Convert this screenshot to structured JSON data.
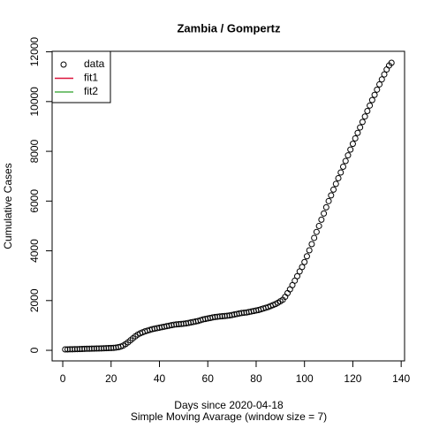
{
  "chart_data": {
    "type": "scatter",
    "title": "Zambia / Gompertz",
    "xlabel": "Days since 2020-04-18",
    "subtitle": "Simple Moving Avarage (window size = 7)",
    "ylabel": "Cumulative Cases",
    "x": [
      1,
      2,
      3,
      4,
      5,
      6,
      7,
      8,
      9,
      10,
      11,
      12,
      13,
      14,
      15,
      16,
      17,
      18,
      19,
      20,
      21,
      22,
      23,
      24,
      25,
      26,
      27,
      28,
      29,
      30,
      31,
      32,
      33,
      34,
      35,
      36,
      37,
      38,
      39,
      40,
      41,
      42,
      43,
      44,
      45,
      46,
      47,
      48,
      49,
      50,
      51,
      52,
      53,
      54,
      55,
      56,
      57,
      58,
      59,
      60,
      61,
      62,
      63,
      64,
      65,
      66,
      67,
      68,
      69,
      70,
      71,
      72,
      73,
      74,
      75,
      76,
      77,
      78,
      79,
      80,
      81,
      82,
      83,
      84,
      85,
      86,
      87,
      88,
      89,
      90,
      91,
      92,
      93,
      94,
      95,
      96,
      97,
      98,
      99,
      100,
      101,
      102,
      103,
      104,
      105,
      106,
      107,
      108,
      109,
      110,
      111,
      112,
      113,
      114,
      115,
      116,
      117,
      118,
      119,
      120,
      121,
      122,
      123,
      124,
      125,
      126,
      127,
      128,
      129,
      130,
      131,
      132,
      133,
      134,
      135,
      136
    ],
    "series": [
      {
        "name": "data",
        "color": "#000000",
        "values": [
          36,
          38,
          40,
          42,
          45,
          48,
          50,
          55,
          60,
          62,
          65,
          68,
          70,
          72,
          75,
          78,
          80,
          85,
          90,
          95,
          100,
          110,
          125,
          150,
          190,
          250,
          320,
          400,
          480,
          560,
          630,
          680,
          720,
          760,
          790,
          820,
          850,
          870,
          890,
          910,
          930,
          950,
          970,
          990,
          1010,
          1030,
          1040,
          1050,
          1060,
          1070,
          1080,
          1100,
          1120,
          1140,
          1160,
          1180,
          1210,
          1240,
          1260,
          1280,
          1300,
          1320,
          1340,
          1350,
          1360,
          1370,
          1380,
          1390,
          1400,
          1420,
          1440,
          1460,
          1480,
          1500,
          1510,
          1520,
          1540,
          1560,
          1580,
          1600,
          1620,
          1650,
          1680,
          1710,
          1740,
          1780,
          1820,
          1860,
          1910,
          1970,
          2030,
          2150,
          2300,
          2450,
          2620,
          2800,
          2980,
          3170,
          3350,
          3550,
          3780,
          4020,
          4270,
          4520,
          4760,
          5000,
          5250,
          5500,
          5750,
          6000,
          6230,
          6460,
          6690,
          6920,
          7150,
          7380,
          7610,
          7840,
          8070,
          8300,
          8520,
          8740,
          8960,
          9180,
          9400,
          9620,
          9840,
          10060,
          10270,
          10480,
          10690,
          10890,
          11090,
          11290,
          11450,
          11560
        ]
      },
      {
        "name": "fit1",
        "color": "#dc143c"
      },
      {
        "name": "fit2",
        "color": "#4daf4a"
      }
    ],
    "xlim": [
      -4.4,
      141.4
    ],
    "xticks": [
      0,
      20,
      40,
      60,
      80,
      100,
      120,
      140
    ],
    "ylim": [
      -425,
      12021
    ],
    "yticks": [
      0,
      2000,
      4000,
      6000,
      8000,
      10000,
      12000
    ],
    "legend": "topleft"
  }
}
